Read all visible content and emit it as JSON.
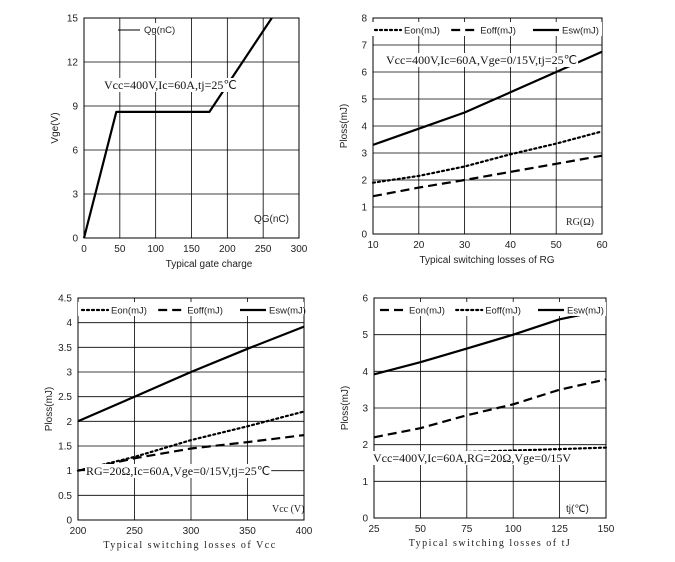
{
  "chart_data": [
    {
      "id": "gate",
      "type": "line",
      "title": "Typical gate charge",
      "xlabel": "Typical gate charge",
      "ylabel": "Vge(V)",
      "corner_label": "QG(nC)",
      "condition": "Vcc=400V,Ic=60A,tj=25℃",
      "xlim": [
        0,
        300
      ],
      "ylim": [
        0,
        15
      ],
      "xticks": [
        0,
        50,
        100,
        150,
        200,
        250,
        300
      ],
      "yticks": [
        0,
        3,
        6,
        9,
        12,
        15
      ],
      "legend": "top-left",
      "series": [
        {
          "name": "Qg(nC)",
          "style": "solid",
          "x": [
            0,
            45,
            175,
            262
          ],
          "y": [
            0,
            8.6,
            8.6,
            15
          ]
        }
      ]
    },
    {
      "id": "rg",
      "type": "line",
      "title": "Typical switching losses of RG",
      "xlabel": "Typical switching losses of RG",
      "ylabel": "Ploss(mJ)",
      "corner_label": "RG(Ω)",
      "condition": "Vcc=400V,Ic=60A,Vge=0/15V,tj=25℃",
      "xlim": [
        10,
        60
      ],
      "ylim": [
        0,
        8
      ],
      "xticks": [
        10,
        20,
        30,
        40,
        50,
        60
      ],
      "yticks": [
        0,
        1,
        2,
        3,
        4,
        5,
        6,
        7,
        8
      ],
      "legend": "top",
      "series": [
        {
          "name": "Eon(mJ)",
          "style": "dotted",
          "x": [
            10,
            20,
            30,
            40,
            50,
            60
          ],
          "y": [
            1.9,
            2.15,
            2.5,
            2.95,
            3.35,
            3.8
          ]
        },
        {
          "name": "Eoff(mJ)",
          "style": "dashed",
          "x": [
            10,
            20,
            30,
            40,
            50,
            60
          ],
          "y": [
            1.4,
            1.72,
            2.0,
            2.3,
            2.6,
            2.9
          ]
        },
        {
          "name": "Esw(mJ)",
          "style": "solid",
          "x": [
            10,
            20,
            30,
            40,
            50,
            60
          ],
          "y": [
            3.3,
            3.9,
            4.5,
            5.25,
            6.0,
            6.75
          ]
        }
      ]
    },
    {
      "id": "vcc",
      "type": "line",
      "title": "Typical switching losses of Vcc",
      "xlabel": "Typical switching losses of Vcc",
      "ylabel": "Ploss(mJ)",
      "corner_label": "Vcc (V)",
      "condition": "RG=20Ω,Ic=60A,Vge=0/15V,tj=25℃",
      "xlim": [
        200,
        400
      ],
      "ylim": [
        0,
        4.5
      ],
      "xticks": [
        200,
        250,
        300,
        350,
        400
      ],
      "yticks": [
        0,
        0.5,
        1,
        1.5,
        2,
        2.5,
        3,
        3.5,
        4,
        4.5
      ],
      "legend": "top",
      "series": [
        {
          "name": "Eon(mJ)",
          "style": "dotted",
          "x": [
            200,
            250,
            300,
            350,
            400
          ],
          "y": [
            1.0,
            1.28,
            1.62,
            1.9,
            2.2
          ]
        },
        {
          "name": "Eoff(mJ)",
          "style": "dashed",
          "x": [
            200,
            250,
            300,
            350,
            400
          ],
          "y": [
            1.0,
            1.25,
            1.45,
            1.58,
            1.72
          ]
        },
        {
          "name": "Esw(mJ)",
          "style": "solid",
          "x": [
            200,
            250,
            300,
            350,
            400
          ],
          "y": [
            2.0,
            2.5,
            3.0,
            3.47,
            3.92
          ]
        }
      ]
    },
    {
      "id": "tj",
      "type": "line",
      "title": "Typical switching losses of tJ",
      "xlabel": "Typical switching losses of tJ",
      "ylabel": "Ploss(mJ)",
      "corner_label": "tj(℃)",
      "condition": "Vcc=400V,Ic=60A,RG=20Ω,Vge=0/15V",
      "xlim": [
        25,
        150
      ],
      "ylim": [
        0,
        6
      ],
      "xticks": [
        25,
        50,
        75,
        100,
        125,
        150
      ],
      "yticks": [
        0,
        1,
        2,
        3,
        4,
        5,
        6
      ],
      "legend": "top",
      "series": [
        {
          "name": "Eon(mJ)",
          "style": "dashed",
          "x": [
            25,
            50,
            75,
            100,
            125,
            150
          ],
          "y": [
            2.2,
            2.45,
            2.8,
            3.1,
            3.5,
            3.78
          ]
        },
        {
          "name": "Eoff(mJ)",
          "style": "dotted",
          "x": [
            25,
            50,
            75,
            100,
            125,
            150
          ],
          "y": [
            1.72,
            1.75,
            1.8,
            1.84,
            1.88,
            1.92
          ]
        },
        {
          "name": "Esw(mJ)",
          "style": "solid",
          "x": [
            25,
            50,
            75,
            100,
            125,
            150
          ],
          "y": [
            3.92,
            4.25,
            4.62,
            5.0,
            5.42,
            5.68
          ]
        }
      ]
    }
  ]
}
